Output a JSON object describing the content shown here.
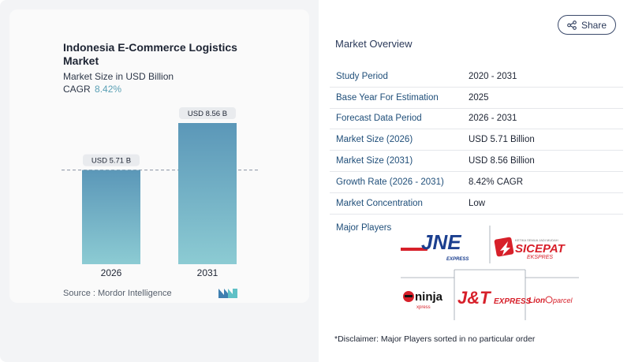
{
  "report": {
    "title": "Indonesia E-Commerce Logistics Market",
    "subtitle": "Market Size in USD Billion",
    "cagr_label": "CAGR",
    "cagr_value": "8.42%",
    "source": "Source :  Mordor Intelligence"
  },
  "share_button": {
    "label": "Share",
    "icon": "share-icon"
  },
  "overview": {
    "title": "Market Overview",
    "rows": [
      {
        "key": "Study Period",
        "value": "2020 - 2031"
      },
      {
        "key": "Base Year For Estimation",
        "value": "2025"
      },
      {
        "key": "Forecast Data Period",
        "value": "2026 - 2031"
      },
      {
        "key": "Market Size (2026)",
        "value": "USD 5.71 Billion"
      },
      {
        "key": "Market Size (2031)",
        "value": "USD 8.56 Billion"
      },
      {
        "key": "Growth Rate (2026 - 2031)",
        "value": "8.42% CAGR"
      },
      {
        "key": "Market Concentration",
        "value": "Low"
      }
    ],
    "players_label": "Major Players",
    "players": [
      {
        "name": "JNE",
        "tagline": "EXPRESS"
      },
      {
        "name": "SICEPAT",
        "tagline": "EKSPRES"
      },
      {
        "name": "ninja",
        "tagline": "xpress"
      },
      {
        "name": "J&T",
        "tagline": "EXPRESS"
      },
      {
        "name": "Lion",
        "tagline": "parcel"
      }
    ],
    "disclaimer": "*Disclaimer: Major Players sorted in no particular order"
  },
  "colors": {
    "bar_top": "#5b97b8",
    "bar_bottom": "#8ccbd3",
    "cagr_accent": "#5aa0b5",
    "jne_blue": "#1b3f8f",
    "red": "#d7202a"
  },
  "chart_data": {
    "type": "bar",
    "categories": [
      "2026",
      "2031"
    ],
    "values": [
      5.71,
      8.56
    ],
    "data_labels": [
      "USD 5.71 B",
      "USD 8.56 B"
    ],
    "title": "Indonesia E-Commerce Logistics Market",
    "ylabel": "",
    "xlabel": "",
    "ylim": [
      0,
      8.56
    ],
    "grid": false,
    "reference_line": "dashed line at first bar value"
  }
}
